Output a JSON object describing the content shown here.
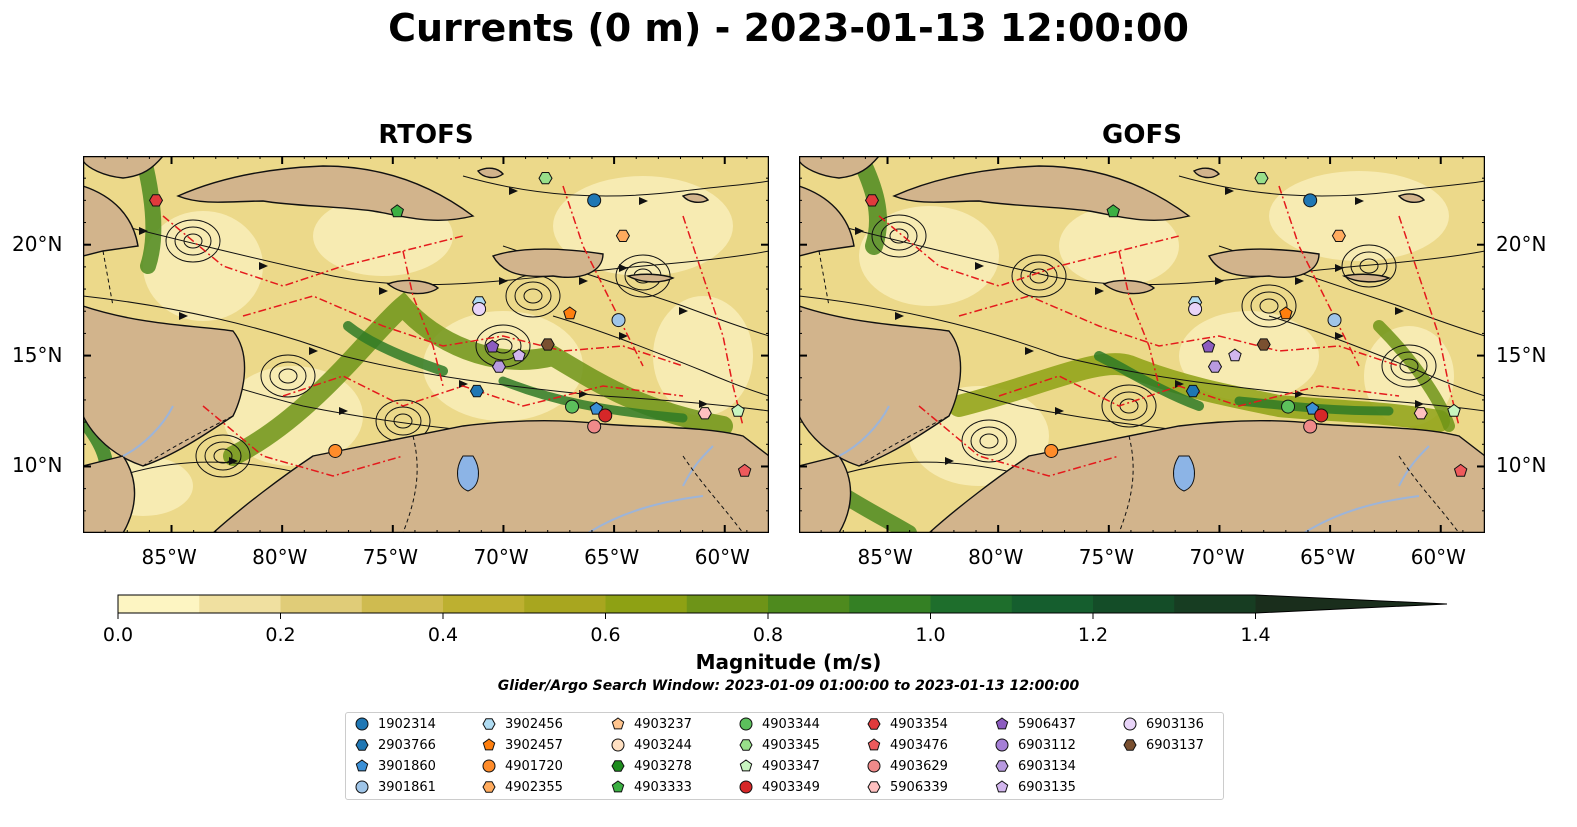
{
  "title": "Currents (0 m) - 2023-01-13 12:00:00",
  "panels": [
    {
      "title": "RTOFS"
    },
    {
      "title": "GOFS"
    }
  ],
  "axes": {
    "lon_ticks": [
      "85°W",
      "80°W",
      "75°W",
      "70°W",
      "65°W",
      "60°W"
    ],
    "lat_ticks": [
      "20°N",
      "15°N",
      "10°N"
    ]
  },
  "colorbar": {
    "label": "Magnitude (m/s)",
    "ticks": [
      "0.0",
      "0.2",
      "0.4",
      "0.6",
      "0.8",
      "1.0",
      "1.2",
      "1.4"
    ],
    "range": [
      0,
      1.6
    ],
    "colors": [
      "#fdf5c2",
      "#f0e0a0",
      "#e0cc78",
      "#cfbb50",
      "#bdb030",
      "#a8a61f",
      "#8ea114",
      "#6e9418",
      "#4e8a1e",
      "#348024",
      "#1e6e2c",
      "#155e2e",
      "#144d28",
      "#173d22",
      "#1a2e1c"
    ]
  },
  "search_window": "Glider/Argo Search Window: 2023-01-09 01:00:00 to 2023-01-13 12:00:00",
  "legend": [
    {
      "id": "1902314",
      "marker": "circle",
      "color": "#1f77b4"
    },
    {
      "id": "2903766",
      "marker": "hexagon",
      "color": "#1f77b4"
    },
    {
      "id": "3901860",
      "marker": "pentagon",
      "color": "#3a8fd6"
    },
    {
      "id": "3901861",
      "marker": "circle",
      "color": "#9fc5e8"
    },
    {
      "id": "3902456",
      "marker": "hexagon",
      "color": "#b0dcf2"
    },
    {
      "id": "3902457",
      "marker": "pentagon",
      "color": "#ff7f0e"
    },
    {
      "id": "4901720",
      "marker": "circle",
      "color": "#ff8c2a"
    },
    {
      "id": "4902355",
      "marker": "hexagon",
      "color": "#ffab5e"
    },
    {
      "id": "4903237",
      "marker": "pentagon",
      "color": "#ffc58f"
    },
    {
      "id": "4903244",
      "marker": "circle",
      "color": "#ffe0c2"
    },
    {
      "id": "4903278",
      "marker": "hexagon",
      "color": "#1e8c1e"
    },
    {
      "id": "4903333",
      "marker": "pentagon",
      "color": "#3cb043"
    },
    {
      "id": "4903344",
      "marker": "circle",
      "color": "#5cc05c"
    },
    {
      "id": "4903345",
      "marker": "hexagon",
      "color": "#98df8a"
    },
    {
      "id": "4903347",
      "marker": "pentagon",
      "color": "#c8f5c0"
    },
    {
      "id": "4903349",
      "marker": "circle",
      "color": "#d62728"
    },
    {
      "id": "4903354",
      "marker": "hexagon",
      "color": "#e03a3c"
    },
    {
      "id": "4903476",
      "marker": "pentagon",
      "color": "#ee5a5c"
    },
    {
      "id": "4903629",
      "marker": "circle",
      "color": "#f08a8a"
    },
    {
      "id": "5906339",
      "marker": "hexagon",
      "color": "#ffc0c0"
    },
    {
      "id": "5906437",
      "marker": "pentagon",
      "color": "#8c5cc0"
    },
    {
      "id": "6903112",
      "marker": "circle",
      "color": "#a57fd6"
    },
    {
      "id": "6903134",
      "marker": "hexagon",
      "color": "#b89ae0"
    },
    {
      "id": "6903135",
      "marker": "pentagon",
      "color": "#d2b6ee"
    },
    {
      "id": "6903136",
      "marker": "circle",
      "color": "#e8d4f8"
    },
    {
      "id": "6903137",
      "marker": "hexagon",
      "color": "#7a5030"
    }
  ],
  "observations": {
    "rtofs": [
      {
        "id": "1902314",
        "lon": -65.9,
        "lat": 22.0
      },
      {
        "id": "4903345",
        "lon": -68.1,
        "lat": 23.0
      },
      {
        "id": "4903333",
        "lon": -74.8,
        "lat": 21.5
      },
      {
        "id": "4903354",
        "lon": -85.7,
        "lat": 22.0
      },
      {
        "id": "4902355",
        "lon": -64.6,
        "lat": 20.4
      },
      {
        "id": "3902456",
        "lon": -71.1,
        "lat": 17.4
      },
      {
        "id": "6903136",
        "lon": -71.1,
        "lat": 17.1
      },
      {
        "id": "3902457",
        "lon": -67.0,
        "lat": 16.9
      },
      {
        "id": "3901861",
        "lon": -64.8,
        "lat": 16.6
      },
      {
        "id": "6903137",
        "lon": -68.0,
        "lat": 15.5
      },
      {
        "id": "5906437",
        "lon": -70.5,
        "lat": 15.4
      },
      {
        "id": "6903135",
        "lon": -69.3,
        "lat": 15.0
      },
      {
        "id": "6903134",
        "lon": -70.2,
        "lat": 14.5
      },
      {
        "id": "2903766",
        "lon": -71.2,
        "lat": 13.4
      },
      {
        "id": "4903344",
        "lon": -66.9,
        "lat": 12.7
      },
      {
        "id": "3901860",
        "lon": -65.8,
        "lat": 12.6
      },
      {
        "id": "4903349",
        "lon": -65.4,
        "lat": 12.3
      },
      {
        "id": "4903629",
        "lon": -65.9,
        "lat": 11.8
      },
      {
        "id": "4901720",
        "lon": -77.6,
        "lat": 10.7
      },
      {
        "id": "5906339",
        "lon": -60.9,
        "lat": 12.4
      },
      {
        "id": "4903347",
        "lon": -59.4,
        "lat": 12.5
      },
      {
        "id": "4903476",
        "lon": -59.1,
        "lat": 9.8
      }
    ],
    "gofs": [
      {
        "id": "1902314",
        "lon": -65.9,
        "lat": 22.0
      },
      {
        "id": "4903345",
        "lon": -68.1,
        "lat": 23.0
      },
      {
        "id": "4903333",
        "lon": -74.8,
        "lat": 21.5
      },
      {
        "id": "4903354",
        "lon": -85.7,
        "lat": 22.0
      },
      {
        "id": "4902355",
        "lon": -64.6,
        "lat": 20.4
      },
      {
        "id": "3902456",
        "lon": -71.1,
        "lat": 17.4
      },
      {
        "id": "6903136",
        "lon": -71.1,
        "lat": 17.1
      },
      {
        "id": "3902457",
        "lon": -67.0,
        "lat": 16.9
      },
      {
        "id": "3901861",
        "lon": -64.8,
        "lat": 16.6
      },
      {
        "id": "6903137",
        "lon": -68.0,
        "lat": 15.5
      },
      {
        "id": "5906437",
        "lon": -70.5,
        "lat": 15.4
      },
      {
        "id": "6903135",
        "lon": -69.3,
        "lat": 15.0
      },
      {
        "id": "6903134",
        "lon": -70.2,
        "lat": 14.5
      },
      {
        "id": "2903766",
        "lon": -71.2,
        "lat": 13.4
      },
      {
        "id": "4903344",
        "lon": -66.9,
        "lat": 12.7
      },
      {
        "id": "3901860",
        "lon": -65.8,
        "lat": 12.6
      },
      {
        "id": "4903349",
        "lon": -65.4,
        "lat": 12.3
      },
      {
        "id": "4903629",
        "lon": -65.9,
        "lat": 11.8
      },
      {
        "id": "4901720",
        "lon": -77.6,
        "lat": 10.7
      },
      {
        "id": "5906339",
        "lon": -60.9,
        "lat": 12.4
      },
      {
        "id": "4903347",
        "lon": -59.4,
        "lat": 12.5
      },
      {
        "id": "4903476",
        "lon": -59.1,
        "lat": 9.8
      }
    ]
  }
}
